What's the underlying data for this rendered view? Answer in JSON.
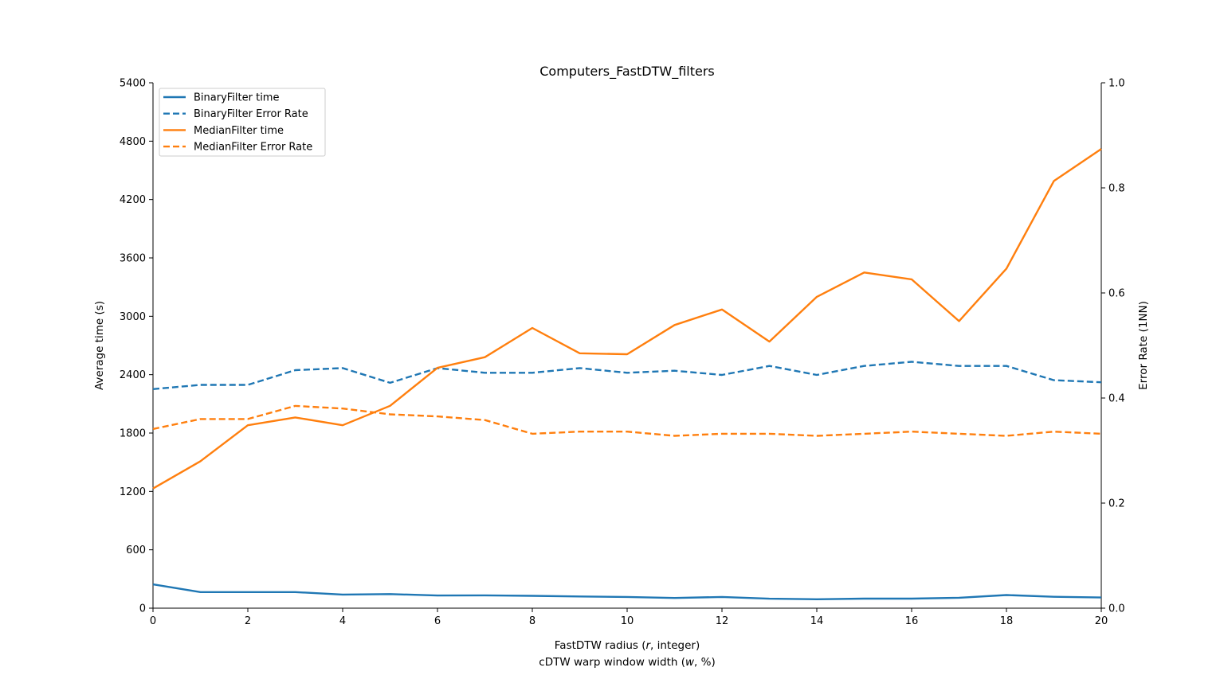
{
  "chart_data": {
    "type": "line",
    "title": "Computers_FastDTW_filters",
    "xlabel": "FastDTW radius (r, integer)",
    "xlabel2": "cDTW warp window width (w, %)",
    "ylabel_left": "Average time (s)",
    "ylabel_right": "Error Rate (1NN)",
    "x": [
      0,
      1,
      2,
      3,
      4,
      5,
      6,
      7,
      8,
      9,
      10,
      11,
      12,
      13,
      14,
      15,
      16,
      17,
      18,
      19,
      20
    ],
    "xlim": [
      0,
      20
    ],
    "x_ticks": [
      "0",
      "2",
      "4",
      "6",
      "8",
      "10",
      "12",
      "14",
      "16",
      "18",
      "20"
    ],
    "ylim_left": [
      0,
      5400
    ],
    "y_ticks_left": [
      "0",
      "600",
      "1200",
      "1800",
      "2400",
      "3000",
      "3600",
      "4200",
      "4800",
      "5400"
    ],
    "ylim_right": [
      0,
      1.0
    ],
    "y_ticks_right": [
      "0.0",
      "0.2",
      "0.4",
      "0.6",
      "0.8",
      "1.0"
    ],
    "legend_position": "top-left",
    "grid": false,
    "series": [
      {
        "name": "BinaryFilter time",
        "axis": "left",
        "style": "solid",
        "color": "#1f77b4",
        "values": [
          245,
          165,
          165,
          165,
          140,
          145,
          130,
          132,
          127,
          120,
          115,
          105,
          115,
          97,
          92,
          98,
          98,
          107,
          135,
          117,
          110
        ]
      },
      {
        "name": "BinaryFilter Error Rate",
        "axis": "right",
        "style": "dashed",
        "color": "#1f77b4",
        "values": [
          0.417,
          0.425,
          0.425,
          0.453,
          0.457,
          0.429,
          0.457,
          0.448,
          0.448,
          0.457,
          0.448,
          0.452,
          0.444,
          0.461,
          0.444,
          0.461,
          0.469,
          0.461,
          0.461,
          0.434,
          0.43
        ]
      },
      {
        "name": "MedianFilter time",
        "axis": "left",
        "style": "solid",
        "color": "#ff7f0e",
        "values": [
          1230,
          1510,
          1880,
          1960,
          1880,
          2080,
          2470,
          2580,
          2880,
          2620,
          2610,
          2910,
          3070,
          2740,
          3200,
          3450,
          3380,
          2950,
          3490,
          4390,
          4720
        ]
      },
      {
        "name": "MedianFilter Error Rate",
        "axis": "right",
        "style": "dashed",
        "color": "#ff7f0e",
        "values": [
          0.341,
          0.36,
          0.36,
          0.385,
          0.38,
          0.369,
          0.365,
          0.358,
          0.332,
          0.336,
          0.336,
          0.328,
          0.332,
          0.332,
          0.328,
          0.332,
          0.336,
          0.332,
          0.328,
          0.336,
          0.332
        ]
      }
    ]
  }
}
